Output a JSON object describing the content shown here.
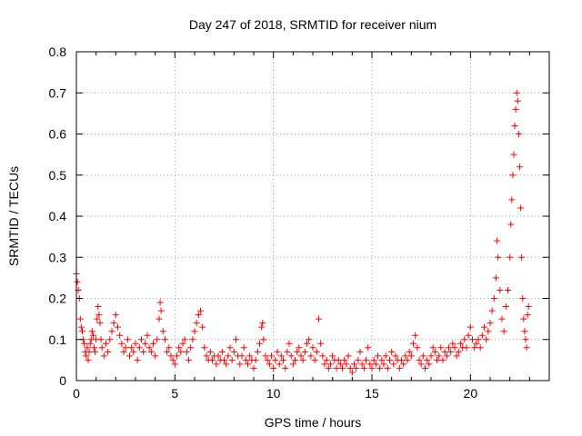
{
  "chart_data": {
    "type": "scatter",
    "title": "Day 247 of 2018, SRMTID for receiver nium",
    "xlabel": "GPS time / hours",
    "ylabel": "SRMTID / TECUs",
    "xlim": [
      0,
      24
    ],
    "ylim": [
      0,
      0.8
    ],
    "x_ticks": [
      0,
      5,
      10,
      15,
      20
    ],
    "x_tick_labels": [
      "0",
      "5",
      "10",
      "15",
      "20"
    ],
    "y_ticks": [
      0,
      0.1,
      0.2,
      0.3,
      0.4,
      0.5,
      0.6,
      0.7,
      0.8
    ],
    "y_tick_labels": [
      "0",
      "0.1",
      "0.2",
      "0.3",
      "0.4",
      "0.5",
      "0.6",
      "0.7",
      "0.8"
    ],
    "grid": true,
    "marker": "+",
    "color": "#ff0000",
    "series": [
      {
        "name": "SRMTID",
        "points": [
          [
            0.0,
            0.26
          ],
          [
            0.05,
            0.24
          ],
          [
            0.1,
            0.22
          ],
          [
            0.15,
            0.2
          ],
          [
            0.2,
            0.15
          ],
          [
            0.25,
            0.13
          ],
          [
            0.3,
            0.12
          ],
          [
            0.35,
            0.1
          ],
          [
            0.4,
            0.09
          ],
          [
            0.45,
            0.07
          ],
          [
            0.5,
            0.06
          ],
          [
            0.55,
            0.08
          ],
          [
            0.6,
            0.05
          ],
          [
            0.65,
            0.07
          ],
          [
            0.7,
            0.09
          ],
          [
            0.75,
            0.1
          ],
          [
            0.8,
            0.12
          ],
          [
            0.85,
            0.11
          ],
          [
            0.9,
            0.08
          ],
          [
            0.95,
            0.07
          ],
          [
            1.0,
            0.1
          ],
          [
            1.05,
            0.15
          ],
          [
            1.1,
            0.18
          ],
          [
            1.15,
            0.16
          ],
          [
            1.2,
            0.14
          ],
          [
            1.25,
            0.1
          ],
          [
            1.3,
            0.08
          ],
          [
            1.4,
            0.06
          ],
          [
            1.5,
            0.09
          ],
          [
            1.6,
            0.07
          ],
          [
            1.7,
            0.1
          ],
          [
            1.8,
            0.12
          ],
          [
            1.9,
            0.14
          ],
          [
            2.0,
            0.16
          ],
          [
            2.1,
            0.13
          ],
          [
            2.2,
            0.11
          ],
          [
            2.3,
            0.09
          ],
          [
            2.4,
            0.07
          ],
          [
            2.5,
            0.08
          ],
          [
            2.6,
            0.1
          ],
          [
            2.7,
            0.06
          ],
          [
            2.8,
            0.08
          ],
          [
            2.9,
            0.07
          ],
          [
            3.0,
            0.09
          ],
          [
            3.1,
            0.05
          ],
          [
            3.2,
            0.08
          ],
          [
            3.3,
            0.1
          ],
          [
            3.4,
            0.07
          ],
          [
            3.5,
            0.09
          ],
          [
            3.6,
            0.11
          ],
          [
            3.7,
            0.08
          ],
          [
            3.8,
            0.07
          ],
          [
            3.9,
            0.09
          ],
          [
            4.0,
            0.06
          ],
          [
            4.1,
            0.1
          ],
          [
            4.2,
            0.15
          ],
          [
            4.25,
            0.19
          ],
          [
            4.3,
            0.17
          ],
          [
            4.4,
            0.12
          ],
          [
            4.5,
            0.1
          ],
          [
            4.6,
            0.07
          ],
          [
            4.7,
            0.08
          ],
          [
            4.8,
            0.06
          ],
          [
            4.9,
            0.05
          ],
          [
            5.0,
            0.04
          ],
          [
            5.1,
            0.06
          ],
          [
            5.2,
            0.08
          ],
          [
            5.3,
            0.07
          ],
          [
            5.4,
            0.09
          ],
          [
            5.5,
            0.1
          ],
          [
            5.6,
            0.07
          ],
          [
            5.7,
            0.05
          ],
          [
            5.8,
            0.08
          ],
          [
            5.9,
            0.1
          ],
          [
            6.0,
            0.12
          ],
          [
            6.1,
            0.14
          ],
          [
            6.2,
            0.16
          ],
          [
            6.3,
            0.17
          ],
          [
            6.4,
            0.13
          ],
          [
            6.5,
            0.08
          ],
          [
            6.6,
            0.06
          ],
          [
            6.7,
            0.05
          ],
          [
            6.8,
            0.07
          ],
          [
            6.9,
            0.05
          ],
          [
            7.0,
            0.06
          ],
          [
            7.1,
            0.04
          ],
          [
            7.2,
            0.06
          ],
          [
            7.3,
            0.05
          ],
          [
            7.4,
            0.07
          ],
          [
            7.5,
            0.05
          ],
          [
            7.6,
            0.04
          ],
          [
            7.7,
            0.06
          ],
          [
            7.8,
            0.08
          ],
          [
            7.9,
            0.05
          ],
          [
            8.0,
            0.07
          ],
          [
            8.1,
            0.1
          ],
          [
            8.2,
            0.06
          ],
          [
            8.3,
            0.04
          ],
          [
            8.4,
            0.06
          ],
          [
            8.5,
            0.08
          ],
          [
            8.6,
            0.05
          ],
          [
            8.7,
            0.04
          ],
          [
            8.8,
            0.06
          ],
          [
            8.9,
            0.05
          ],
          [
            9.0,
            0.03
          ],
          [
            9.1,
            0.05
          ],
          [
            9.2,
            0.07
          ],
          [
            9.3,
            0.09
          ],
          [
            9.4,
            0.13
          ],
          [
            9.45,
            0.14
          ],
          [
            9.5,
            0.1
          ],
          [
            9.6,
            0.06
          ],
          [
            9.7,
            0.05
          ],
          [
            9.8,
            0.04
          ],
          [
            9.9,
            0.06
          ],
          [
            10.0,
            0.03
          ],
          [
            10.1,
            0.05
          ],
          [
            10.2,
            0.07
          ],
          [
            10.3,
            0.04
          ],
          [
            10.4,
            0.06
          ],
          [
            10.5,
            0.05
          ],
          [
            10.6,
            0.03
          ],
          [
            10.7,
            0.07
          ],
          [
            10.8,
            0.09
          ],
          [
            10.9,
            0.06
          ],
          [
            11.0,
            0.04
          ],
          [
            11.1,
            0.05
          ],
          [
            11.2,
            0.07
          ],
          [
            11.3,
            0.08
          ],
          [
            11.4,
            0.06
          ],
          [
            11.5,
            0.05
          ],
          [
            11.6,
            0.07
          ],
          [
            11.7,
            0.09
          ],
          [
            11.8,
            0.1
          ],
          [
            11.9,
            0.06
          ],
          [
            12.0,
            0.08
          ],
          [
            12.1,
            0.05
          ],
          [
            12.2,
            0.07
          ],
          [
            12.3,
            0.15
          ],
          [
            12.4,
            0.09
          ],
          [
            12.5,
            0.06
          ],
          [
            12.6,
            0.04
          ],
          [
            12.7,
            0.05
          ],
          [
            12.8,
            0.03
          ],
          [
            12.9,
            0.04
          ],
          [
            13.0,
            0.06
          ],
          [
            13.1,
            0.05
          ],
          [
            13.2,
            0.03
          ],
          [
            13.3,
            0.05
          ],
          [
            13.4,
            0.04
          ],
          [
            13.5,
            0.03
          ],
          [
            13.6,
            0.05
          ],
          [
            13.7,
            0.04
          ],
          [
            13.8,
            0.06
          ],
          [
            13.9,
            0.03
          ],
          [
            14.0,
            0.02
          ],
          [
            14.1,
            0.04
          ],
          [
            14.2,
            0.03
          ],
          [
            14.3,
            0.05
          ],
          [
            14.4,
            0.07
          ],
          [
            14.5,
            0.04
          ],
          [
            14.6,
            0.03
          ],
          [
            14.7,
            0.05
          ],
          [
            14.8,
            0.08
          ],
          [
            14.9,
            0.04
          ],
          [
            15.0,
            0.03
          ],
          [
            15.1,
            0.05
          ],
          [
            15.2,
            0.04
          ],
          [
            15.3,
            0.06
          ],
          [
            15.4,
            0.03
          ],
          [
            15.5,
            0.05
          ],
          [
            15.6,
            0.04
          ],
          [
            15.7,
            0.06
          ],
          [
            15.8,
            0.03
          ],
          [
            15.9,
            0.05
          ],
          [
            16.0,
            0.07
          ],
          [
            16.1,
            0.04
          ],
          [
            16.2,
            0.06
          ],
          [
            16.3,
            0.05
          ],
          [
            16.4,
            0.03
          ],
          [
            16.5,
            0.05
          ],
          [
            16.6,
            0.04
          ],
          [
            16.7,
            0.06
          ],
          [
            16.8,
            0.05
          ],
          [
            16.9,
            0.07
          ],
          [
            17.0,
            0.06
          ],
          [
            17.1,
            0.09
          ],
          [
            17.2,
            0.11
          ],
          [
            17.3,
            0.08
          ],
          [
            17.4,
            0.05
          ],
          [
            17.5,
            0.04
          ],
          [
            17.6,
            0.06
          ],
          [
            17.7,
            0.03
          ],
          [
            17.8,
            0.05
          ],
          [
            17.9,
            0.04
          ],
          [
            18.0,
            0.06
          ],
          [
            18.1,
            0.08
          ],
          [
            18.2,
            0.07
          ],
          [
            18.3,
            0.05
          ],
          [
            18.4,
            0.06
          ],
          [
            18.5,
            0.08
          ],
          [
            18.6,
            0.05
          ],
          [
            18.7,
            0.07
          ],
          [
            18.8,
            0.06
          ],
          [
            18.9,
            0.08
          ],
          [
            19.0,
            0.07
          ],
          [
            19.1,
            0.09
          ],
          [
            19.2,
            0.08
          ],
          [
            19.3,
            0.06
          ],
          [
            19.4,
            0.07
          ],
          [
            19.5,
            0.09
          ],
          [
            19.6,
            0.08
          ],
          [
            19.7,
            0.1
          ],
          [
            19.8,
            0.08
          ],
          [
            19.9,
            0.11
          ],
          [
            20.0,
            0.13
          ],
          [
            20.1,
            0.1
          ],
          [
            20.2,
            0.08
          ],
          [
            20.3,
            0.09
          ],
          [
            20.4,
            0.1
          ],
          [
            20.5,
            0.08
          ],
          [
            20.6,
            0.11
          ],
          [
            20.7,
            0.13
          ],
          [
            20.8,
            0.1
          ],
          [
            20.9,
            0.12
          ],
          [
            21.0,
            0.14
          ],
          [
            21.1,
            0.17
          ],
          [
            21.2,
            0.2
          ],
          [
            21.3,
            0.25
          ],
          [
            21.35,
            0.34
          ],
          [
            21.4,
            0.3
          ],
          [
            21.5,
            0.22
          ],
          [
            21.6,
            0.15
          ],
          [
            21.7,
            0.12
          ],
          [
            21.8,
            0.18
          ],
          [
            21.9,
            0.22
          ],
          [
            22.0,
            0.3
          ],
          [
            22.05,
            0.38
          ],
          [
            22.1,
            0.44
          ],
          [
            22.15,
            0.5
          ],
          [
            22.2,
            0.55
          ],
          [
            22.25,
            0.62
          ],
          [
            22.3,
            0.66
          ],
          [
            22.35,
            0.7
          ],
          [
            22.4,
            0.68
          ],
          [
            22.45,
            0.6
          ],
          [
            22.5,
            0.52
          ],
          [
            22.55,
            0.42
          ],
          [
            22.6,
            0.3
          ],
          [
            22.65,
            0.2
          ],
          [
            22.7,
            0.15
          ],
          [
            22.75,
            0.12
          ],
          [
            22.8,
            0.1
          ],
          [
            22.85,
            0.08
          ],
          [
            22.9,
            0.16
          ],
          [
            22.95,
            0.18
          ]
        ]
      }
    ]
  }
}
